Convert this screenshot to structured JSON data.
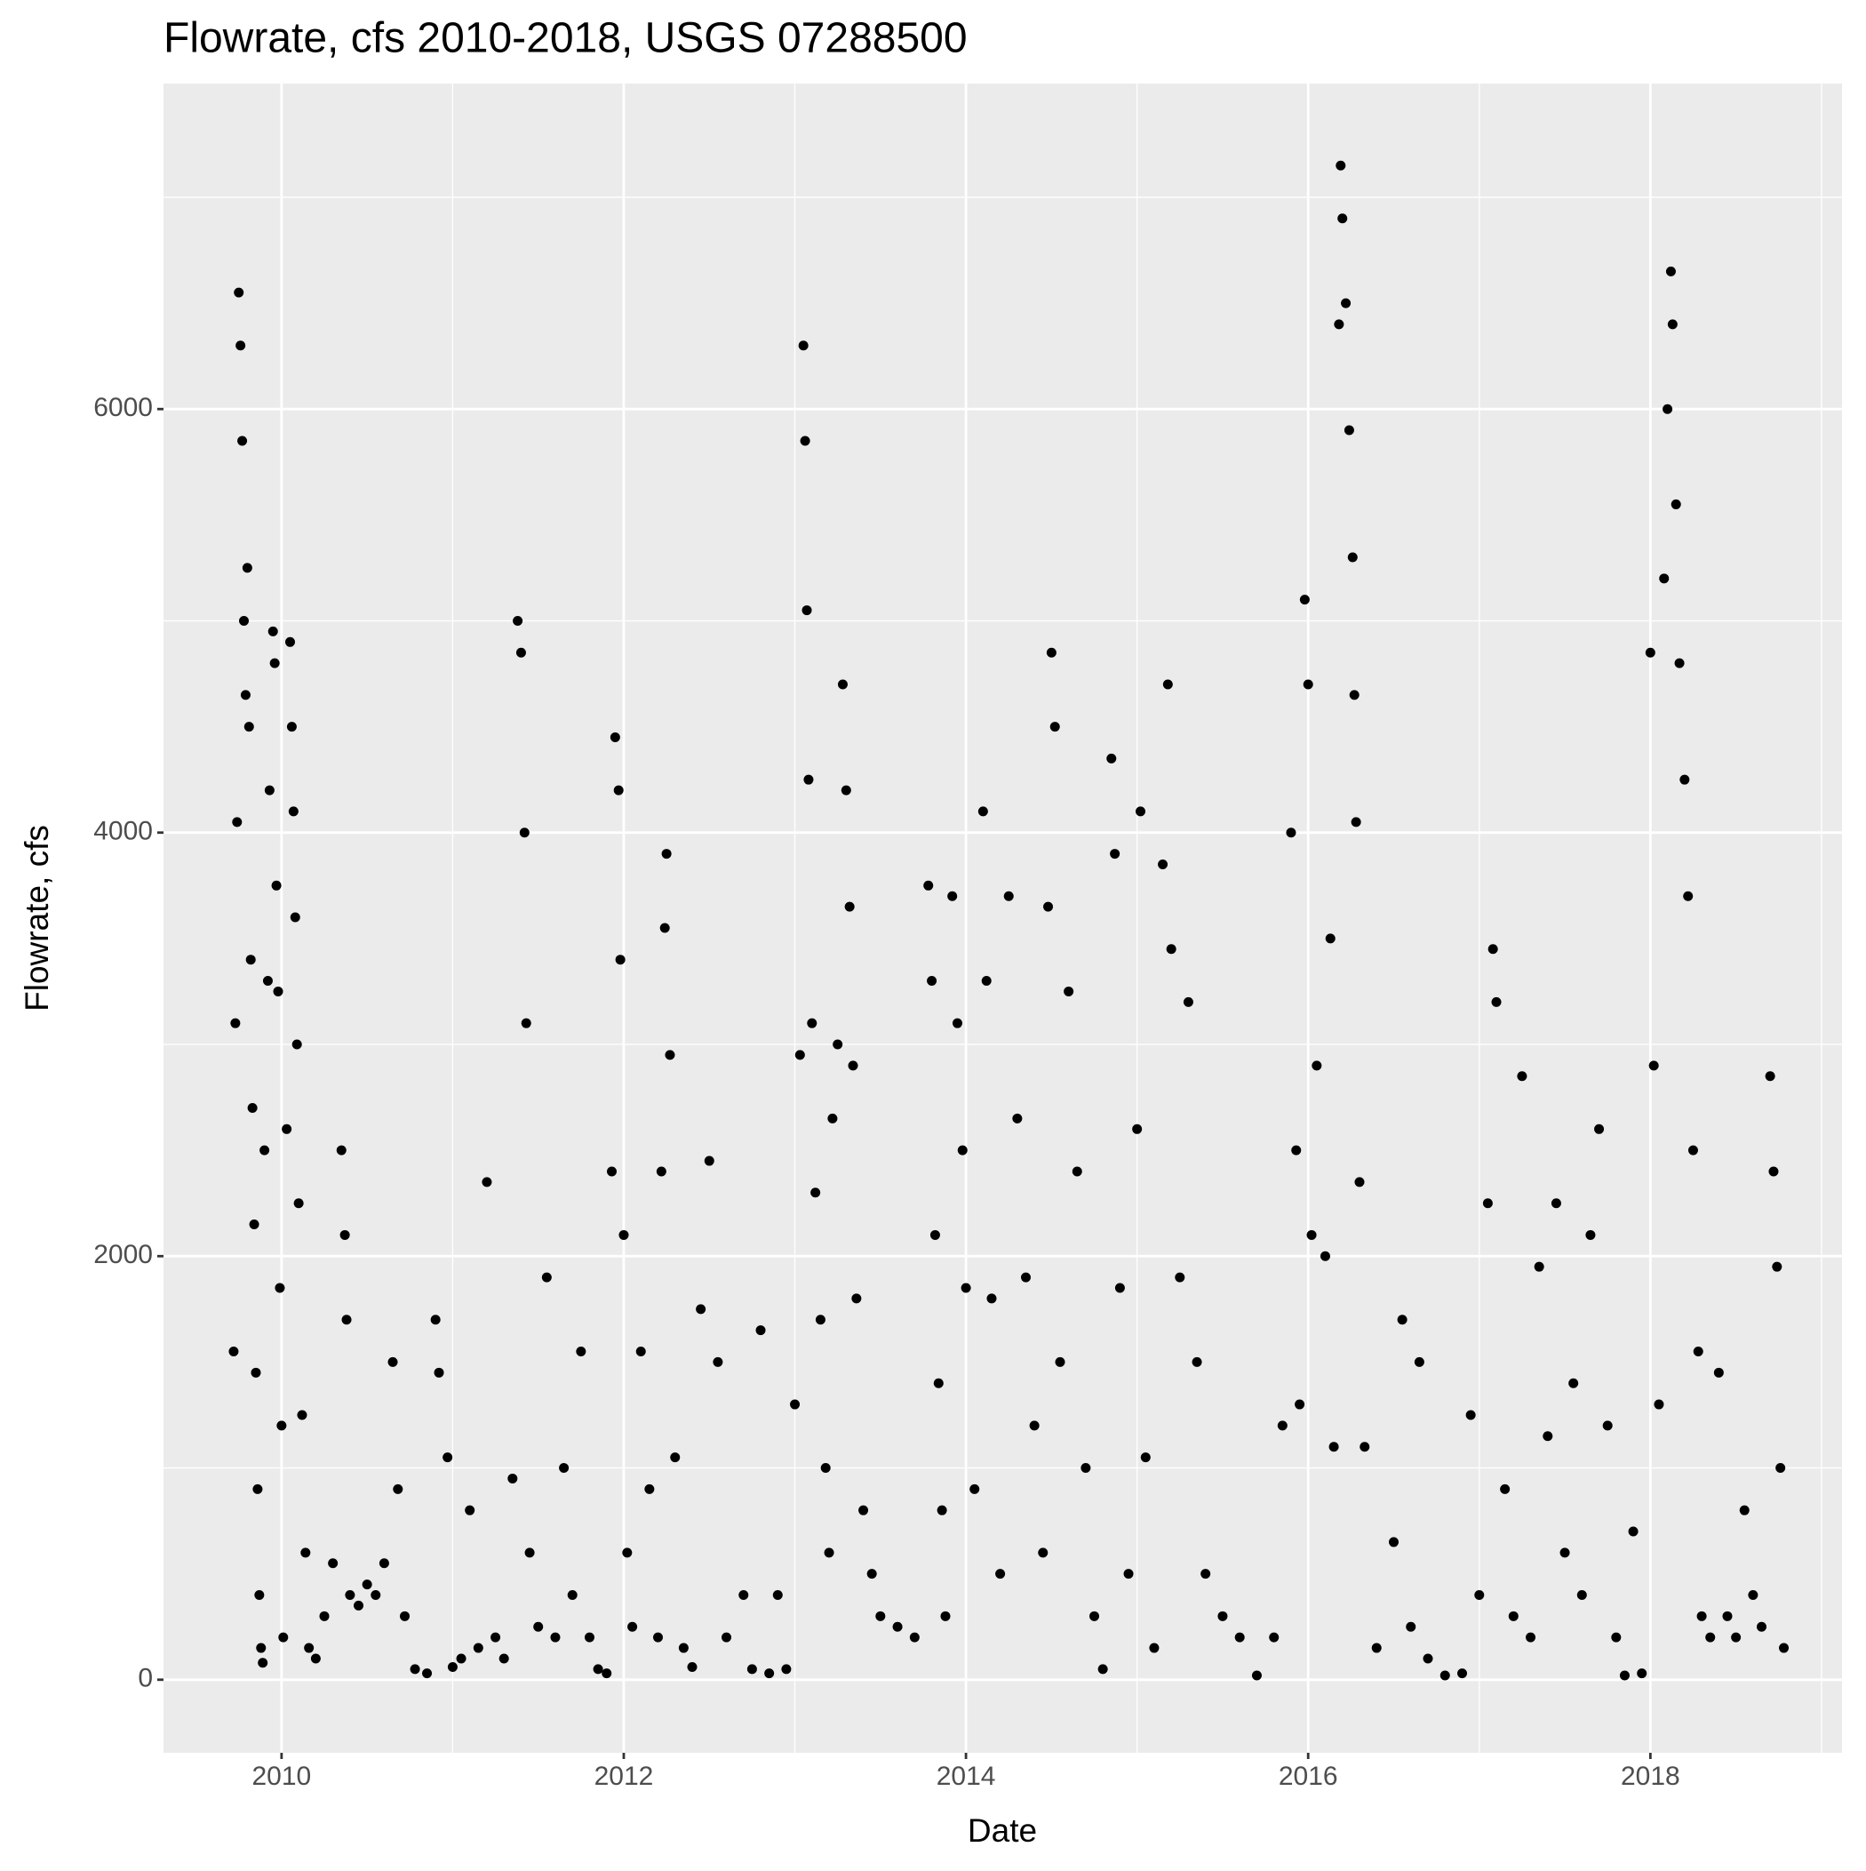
{
  "chart_data": {
    "type": "scatter",
    "title": "Flowrate, cfs 2010-2018, USGS 07288500",
    "x_label": "Date",
    "y_label": "Flowrate, cfs",
    "color": "#000000",
    "grid": true,
    "xlim": [
      2009.31,
      2019.12
    ],
    "ylim": [
      -345,
      7537
    ],
    "xticks": [
      2010,
      2012,
      2014,
      2016,
      2018
    ],
    "yticks": [
      0,
      2000,
      4000,
      6000
    ],
    "x_minor_grid": [
      2011,
      2013,
      2015,
      2017,
      2019
    ],
    "y_minor_grid": [
      1000,
      3000,
      5000,
      7000
    ],
    "x": [
      2009.72,
      2009.73,
      2009.74,
      2009.75,
      2009.76,
      2009.77,
      2009.78,
      2009.79,
      2009.8,
      2009.81,
      2009.82,
      2009.83,
      2009.84,
      2009.85,
      2009.86,
      2009.87,
      2009.88,
      2009.89,
      2009.9,
      2009.92,
      2009.93,
      2009.95,
      2009.96,
      2009.97,
      2009.98,
      2009.99,
      2010.0,
      2010.01,
      2010.03,
      2010.05,
      2010.06,
      2010.07,
      2010.08,
      2010.09,
      2010.1,
      2010.12,
      2010.14,
      2010.16,
      2010.2,
      2010.25,
      2010.3,
      2010.35,
      2010.37,
      2010.38,
      2010.4,
      2010.45,
      2010.5,
      2010.55,
      2010.6,
      2010.65,
      2010.68,
      2010.72,
      2010.78,
      2010.85,
      2010.9,
      2010.92,
      2010.97,
      2011.0,
      2011.05,
      2011.1,
      2011.15,
      2011.2,
      2011.25,
      2011.3,
      2011.35,
      2011.38,
      2011.4,
      2011.42,
      2011.43,
      2011.45,
      2011.5,
      2011.55,
      2011.6,
      2011.65,
      2011.7,
      2011.75,
      2011.8,
      2011.85,
      2011.9,
      2011.93,
      2011.95,
      2011.97,
      2011.98,
      2012.0,
      2012.02,
      2012.05,
      2012.1,
      2012.15,
      2012.2,
      2012.22,
      2012.24,
      2012.25,
      2012.27,
      2012.3,
      2012.35,
      2012.4,
      2012.45,
      2012.5,
      2012.55,
      2012.6,
      2012.7,
      2012.75,
      2012.8,
      2012.85,
      2012.9,
      2012.95,
      2013.0,
      2013.03,
      2013.05,
      2013.06,
      2013.07,
      2013.08,
      2013.1,
      2013.12,
      2013.15,
      2013.18,
      2013.2,
      2013.22,
      2013.25,
      2013.28,
      2013.3,
      2013.32,
      2013.34,
      2013.36,
      2013.4,
      2013.45,
      2013.5,
      2013.6,
      2013.7,
      2013.78,
      2013.8,
      2013.82,
      2013.84,
      2013.86,
      2013.88,
      2013.92,
      2013.95,
      2013.98,
      2014.0,
      2014.05,
      2014.1,
      2014.12,
      2014.15,
      2014.2,
      2014.25,
      2014.3,
      2014.35,
      2014.4,
      2014.45,
      2014.48,
      2014.5,
      2014.52,
      2014.55,
      2014.6,
      2014.65,
      2014.7,
      2014.75,
      2014.8,
      2014.85,
      2014.87,
      2014.9,
      2014.95,
      2015.0,
      2015.02,
      2015.05,
      2015.1,
      2015.15,
      2015.18,
      2015.2,
      2015.25,
      2015.3,
      2015.35,
      2015.4,
      2015.5,
      2015.6,
      2015.7,
      2015.8,
      2015.85,
      2015.9,
      2015.93,
      2015.95,
      2015.98,
      2016.0,
      2016.02,
      2016.05,
      2016.1,
      2016.13,
      2016.15,
      2016.18,
      2016.19,
      2016.2,
      2016.22,
      2016.24,
      2016.26,
      2016.27,
      2016.28,
      2016.3,
      2016.33,
      2016.4,
      2016.5,
      2016.55,
      2016.6,
      2016.65,
      2016.7,
      2016.8,
      2016.9,
      2016.95,
      2017.0,
      2017.05,
      2017.08,
      2017.1,
      2017.15,
      2017.2,
      2017.25,
      2017.3,
      2017.35,
      2017.4,
      2017.45,
      2017.5,
      2017.55,
      2017.6,
      2017.65,
      2017.7,
      2017.75,
      2017.8,
      2017.85,
      2017.9,
      2017.95,
      2018.0,
      2018.02,
      2018.05,
      2018.08,
      2018.1,
      2018.12,
      2018.13,
      2018.15,
      2018.17,
      2018.2,
      2018.22,
      2018.25,
      2018.28,
      2018.3,
      2018.35,
      2018.4,
      2018.45,
      2018.5,
      2018.55,
      2018.6,
      2018.65,
      2018.7,
      2018.72,
      2018.74,
      2018.76,
      2018.78
    ],
    "y": [
      1550,
      3100,
      4050,
      6550,
      6300,
      5850,
      5000,
      4650,
      5250,
      4500,
      3400,
      2700,
      2150,
      1450,
      900,
      400,
      150,
      80,
      2500,
      3300,
      4200,
      4950,
      4800,
      3750,
      3250,
      1850,
      1200,
      200,
      2600,
      4900,
      4500,
      4100,
      3600,
      3000,
      2250,
      1250,
      600,
      150,
      100,
      300,
      550,
      2500,
      2100,
      1700,
      400,
      350,
      450,
      400,
      550,
      1500,
      900,
      300,
      50,
      30,
      1700,
      1450,
      1050,
      60,
      100,
      800,
      150,
      2350,
      200,
      100,
      950,
      5000,
      4850,
      4000,
      3100,
      600,
      250,
      1900,
      200,
      1000,
      400,
      1550,
      200,
      50,
      30,
      2400,
      4450,
      4200,
      3400,
      2100,
      600,
      250,
      1550,
      900,
      200,
      2400,
      3550,
      3900,
      2950,
      1050,
      150,
      60,
      1750,
      2450,
      1500,
      200,
      400,
      50,
      1650,
      30,
      400,
      50,
      1300,
      2950,
      6300,
      5850,
      5050,
      4250,
      3100,
      2300,
      1700,
      1000,
      600,
      2650,
      3000,
      4700,
      4200,
      3650,
      2900,
      1800,
      800,
      500,
      300,
      250,
      200,
      3750,
      3300,
      2100,
      1400,
      800,
      300,
      3700,
      3100,
      2500,
      1850,
      900,
      4100,
      3300,
      1800,
      500,
      3700,
      2650,
      1900,
      1200,
      600,
      3650,
      4850,
      4500,
      1500,
      3250,
      2400,
      1000,
      300,
      50,
      4350,
      3900,
      1850,
      500,
      2600,
      4100,
      1050,
      150,
      3850,
      4700,
      3450,
      1900,
      3200,
      1500,
      500,
      300,
      200,
      20,
      200,
      1200,
      4000,
      2500,
      1300,
      5100,
      4700,
      2100,
      2900,
      2000,
      3500,
      1100,
      6400,
      7150,
      6900,
      6500,
      5900,
      5300,
      4650,
      4050,
      2350,
      1100,
      150,
      650,
      1700,
      250,
      1500,
      100,
      20,
      30,
      1250,
      400,
      2250,
      3450,
      3200,
      900,
      300,
      2850,
      200,
      1950,
      1150,
      2250,
      600,
      1400,
      400,
      2100,
      2600,
      1200,
      200,
      20,
      700,
      30,
      4850,
      2900,
      1300,
      5200,
      6000,
      6650,
      6400,
      5550,
      4800,
      4250,
      3700,
      2500,
      1550,
      300,
      200,
      1450,
      300,
      200,
      800,
      400,
      250,
      2850,
      2400,
      1950,
      1000,
      150
    ]
  }
}
